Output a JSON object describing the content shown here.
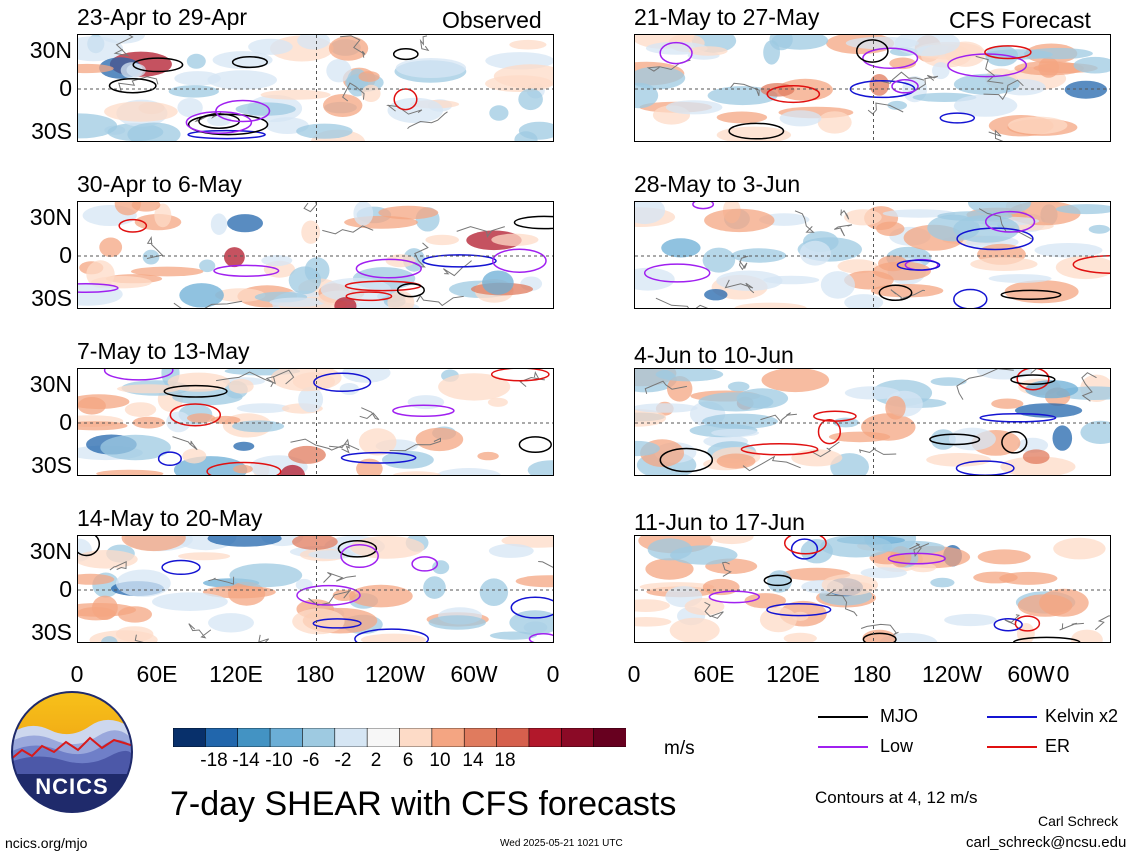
{
  "header": {
    "observed_label": "Observed",
    "forecast_label": "CFS Forecast"
  },
  "panels": {
    "observed": [
      {
        "title": "23-Apr to 29-Apr"
      },
      {
        "title": "30-Apr to 6-May"
      },
      {
        "title": "7-May to 13-May"
      },
      {
        "title": "14-May to 20-May"
      }
    ],
    "forecast": [
      {
        "title": "21-May to 27-May"
      },
      {
        "title": "28-May to 3-Jun"
      },
      {
        "title": "4-Jun to 10-Jun"
      },
      {
        "title": "11-Jun to 17-Jun"
      }
    ]
  },
  "axes": {
    "lat_labels": [
      "30N",
      "0",
      "30S"
    ],
    "lon_labels": [
      "0",
      "60E",
      "120E",
      "180",
      "120W",
      "60W",
      "0"
    ]
  },
  "colorbar": {
    "colors": [
      "#08306b",
      "#2166ac",
      "#4393c3",
      "#6baed6",
      "#9ecae1",
      "#d6e6f4",
      "#f7f7f7",
      "#fddbc7",
      "#f4a582",
      "#e07b5e",
      "#d6604d",
      "#b2182b",
      "#8b0a26",
      "#67001f"
    ],
    "labels": [
      "-18",
      "-14",
      "-10",
      "-6",
      "-2",
      "2",
      "6",
      "10",
      "14",
      "18"
    ],
    "unit": "m/s"
  },
  "legend": {
    "items": [
      {
        "label": "MJO",
        "color": "#000000"
      },
      {
        "label": "Kelvin x2",
        "color": "#1414d2"
      },
      {
        "label": "Low",
        "color": "#a020f0"
      },
      {
        "label": "ER",
        "color": "#e01010"
      }
    ],
    "contours_note": "Contours at 4, 12 m/s"
  },
  "logo": {
    "text": "NCICS"
  },
  "footer": {
    "main_title": "7-day SHEAR with CFS forecasts",
    "site": "ncics.org/mjo",
    "timestamp": "Wed 2025-05-21 1021 UTC",
    "author": "Carl Schreck",
    "email": "carl_schreck@ncsu.edu"
  }
}
